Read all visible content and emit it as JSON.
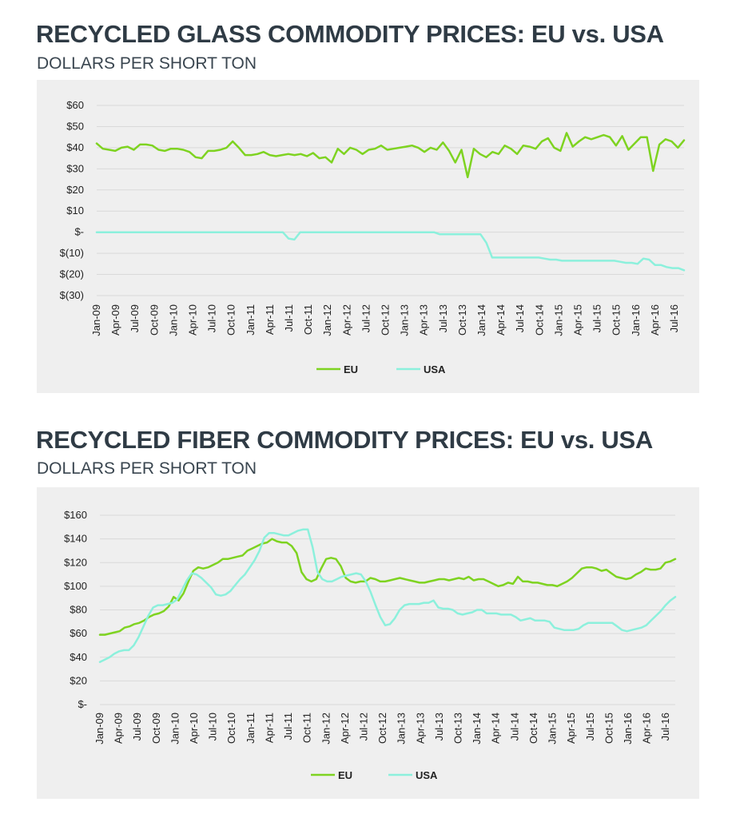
{
  "colors": {
    "eu": "#7ed321",
    "usa": "#8cf0dc",
    "grid": "#d9d9d9",
    "title": "#2f3b45"
  },
  "chart_data": [
    {
      "type": "line",
      "title": "RECYCLED GLASS COMMODITY PRICES: EU vs. USA",
      "subtitle": "DOLLARS PER SHORT TON",
      "ylim": [
        -30,
        60
      ],
      "yticks": [
        60,
        50,
        40,
        30,
        20,
        10,
        0,
        -10,
        -20,
        -30
      ],
      "ytick_labels": [
        "$60",
        "$50",
        "$40",
        "$30",
        "$20",
        "$10",
        "$-",
        "$(10)",
        "$(20)",
        "$(30)"
      ],
      "xtick_labels": [
        "Jan-09",
        "Apr-09",
        "Jul-09",
        "Oct-09",
        "Jan-10",
        "Apr-10",
        "Jul-10",
        "Oct-10",
        "Jan-11",
        "Apr-11",
        "Jul-11",
        "Oct-11",
        "Jan-12",
        "Apr-12",
        "Jul-12",
        "Oct-12",
        "Jan-13",
        "Apr-13",
        "Jul-13",
        "Oct-13",
        "Jan-14",
        "Apr-14",
        "Jul-14",
        "Oct-14",
        "Jan-15",
        "Apr-15",
        "Jul-15",
        "Oct-15",
        "Jan-16",
        "Apr-16",
        "Jul-16"
      ],
      "grid": "horizontal",
      "legend_position": "bottom",
      "series": [
        {
          "name": "EU",
          "values": [
            42,
            39.5,
            39,
            38.5,
            40,
            40.5,
            39,
            41.5,
            41.5,
            41,
            39,
            38.5,
            39.5,
            39.5,
            39,
            38,
            35.5,
            35,
            38.5,
            38.5,
            39,
            40,
            43,
            40,
            36.5,
            36.5,
            37,
            38,
            36.5,
            36,
            36.5,
            37,
            36.5,
            37,
            36,
            37.5,
            35,
            35.5,
            33,
            39.5,
            37,
            40,
            39,
            37,
            39,
            39.5,
            41,
            39,
            39.5,
            40,
            40.5,
            41,
            40,
            38,
            40,
            39,
            42.5,
            38.5,
            33,
            39,
            26,
            39.5,
            37,
            35.5,
            38,
            37,
            41,
            39.5,
            37,
            41,
            40.5,
            39.5,
            43,
            44.5,
            40,
            38.5,
            47,
            40.5,
            43,
            45,
            44,
            45,
            46,
            45,
            41,
            45.5,
            39,
            42,
            45,
            45,
            29,
            41.5,
            44,
            43,
            40,
            43.5
          ]
        },
        {
          "name": "USA",
          "values": [
            0,
            0,
            0,
            0,
            0,
            0,
            0,
            0,
            0,
            0,
            0,
            0,
            0,
            0,
            0,
            0,
            0,
            0,
            0,
            0,
            0,
            0,
            0,
            0,
            0,
            0,
            0,
            0,
            0,
            0,
            0,
            0,
            0,
            -3,
            -3.5,
            0,
            0,
            0,
            0,
            0,
            0,
            0,
            0,
            0,
            0,
            0,
            0,
            0,
            0,
            0,
            0,
            0,
            0,
            0,
            0,
            0,
            0,
            0,
            0,
            -1,
            -1,
            -1,
            -1,
            -1,
            -1,
            -1,
            -1,
            -5,
            -12,
            -12,
            -12,
            -12,
            -12,
            -12,
            -12,
            -12,
            -12,
            -12.5,
            -13,
            -13,
            -13.5,
            -13.5,
            -13.5,
            -13.5,
            -13.5,
            -13.5,
            -13.5,
            -13.5,
            -13.5,
            -13.5,
            -14,
            -14.5,
            -14.5,
            -15,
            -12.5,
            -13,
            -15.5,
            -15.5,
            -16.5,
            -17,
            -17,
            -18
          ]
        }
      ]
    },
    {
      "type": "line",
      "title": "RECYCLED FIBER COMMODITY PRICES: EU vs. USA",
      "subtitle": "DOLLARS PER SHORT TON",
      "ylim": [
        0,
        160
      ],
      "yticks": [
        160,
        140,
        120,
        100,
        80,
        60,
        40,
        20,
        0
      ],
      "ytick_labels": [
        "$160",
        "$140",
        "$120",
        "$100",
        "$80",
        "$60",
        "$40",
        "$20",
        "$-"
      ],
      "xtick_labels": [
        "Jan-09",
        "Apr-09",
        "Jul-09",
        "Oct-09",
        "Jan-10",
        "Apr-10",
        "Jul-10",
        "Oct-10",
        "Jan-11",
        "Apr-11",
        "Jul-11",
        "Oct-11",
        "Jan-12",
        "Apr-12",
        "Jul-12",
        "Oct-12",
        "Jan-13",
        "Apr-13",
        "Jul-13",
        "Oct-13",
        "Jan-14",
        "Apr-14",
        "Jul-14",
        "Oct-14",
        "Jan-15",
        "Apr-15",
        "Jul-15",
        "Oct-15",
        "Jan-16",
        "Apr-16",
        "Jul-16"
      ],
      "grid": "horizontal",
      "legend_position": "bottom",
      "series": [
        {
          "name": "EU",
          "values": [
            59,
            59,
            60,
            61,
            62,
            65,
            66,
            68,
            69,
            71,
            74,
            76,
            77,
            79,
            83,
            91,
            88,
            94,
            104,
            113,
            116,
            115,
            116,
            118,
            120,
            123,
            123,
            124,
            125,
            126,
            130,
            132,
            134,
            136,
            137,
            140,
            138,
            137,
            137,
            134,
            128,
            112,
            106,
            104,
            106,
            115,
            123,
            124,
            123,
            117,
            107,
            104,
            103,
            104,
            104,
            107,
            106,
            104,
            104,
            105,
            106,
            107,
            106,
            105,
            104,
            103,
            103,
            104,
            105,
            106,
            106,
            105,
            106,
            107,
            106,
            108,
            105,
            106,
            106,
            104,
            102,
            100,
            101,
            103,
            102,
            108,
            104,
            104,
            103,
            103,
            102,
            101,
            101,
            100,
            102,
            104,
            107,
            111,
            115,
            116,
            116,
            115,
            113,
            114,
            111,
            108,
            107,
            106,
            107,
            110,
            112,
            115,
            114,
            114,
            115,
            120,
            121,
            123
          ]
        },
        {
          "name": "USA",
          "values": [
            36,
            38,
            40,
            43,
            45,
            46,
            46,
            50,
            57,
            66,
            75,
            82,
            84,
            84,
            85,
            86,
            89,
            97,
            105,
            111,
            110,
            107,
            103,
            99,
            93,
            92,
            93,
            96,
            101,
            106,
            110,
            116,
            122,
            130,
            141,
            145,
            145,
            144,
            143,
            143,
            145,
            147,
            148,
            148,
            133,
            112,
            106,
            104,
            104,
            106,
            108,
            109,
            110,
            111,
            110,
            104,
            95,
            84,
            74,
            67,
            68,
            73,
            80,
            84,
            85,
            85,
            85,
            86,
            86,
            88,
            82,
            81,
            81,
            80,
            77,
            76,
            77,
            78,
            80,
            80,
            77,
            77,
            77,
            76,
            76,
            76,
            74,
            71,
            72,
            73,
            71,
            71,
            71,
            70,
            65,
            64,
            63,
            63,
            63,
            64,
            67,
            69,
            69,
            69,
            69,
            69,
            69,
            66,
            63,
            62,
            63,
            64,
            65,
            67,
            71,
            75,
            79,
            84,
            88,
            91
          ]
        }
      ]
    }
  ]
}
